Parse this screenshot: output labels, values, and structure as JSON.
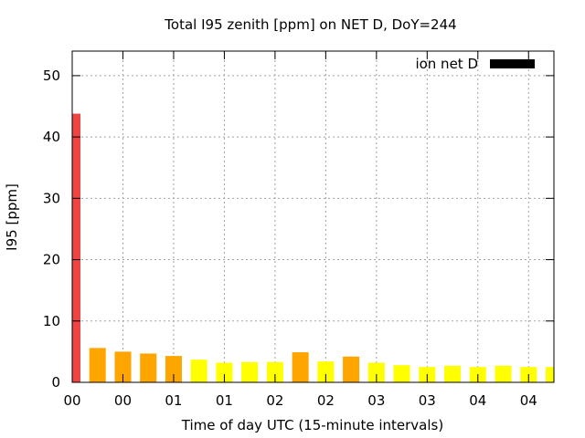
{
  "chart_data": {
    "type": "bar",
    "title": "Total I95 zenith [ppm] on NET D, DoY=244",
    "xlabel": "Time of day UTC (15-minute intervals)",
    "ylabel": "I95 [ppm]",
    "ylim": [
      0,
      54
    ],
    "yticks": [
      0,
      10,
      20,
      30,
      40,
      50
    ],
    "xlim": [
      0,
      19
    ],
    "xticks": [
      {
        "x": 0,
        "label": "00"
      },
      {
        "x": 2,
        "label": "00"
      },
      {
        "x": 4,
        "label": "01"
      },
      {
        "x": 6,
        "label": "01"
      },
      {
        "x": 8,
        "label": "02"
      },
      {
        "x": 10,
        "label": "02"
      },
      {
        "x": 12,
        "label": "03"
      },
      {
        "x": 14,
        "label": "03"
      },
      {
        "x": 16,
        "label": "04"
      },
      {
        "x": 18,
        "label": "04"
      }
    ],
    "grid": true,
    "legend": {
      "position": "top-right",
      "entries": [
        {
          "label": "ion net D",
          "color": "#000000"
        }
      ]
    },
    "bar_width": 0.65,
    "series": [
      {
        "x": [
          0,
          1,
          2,
          3,
          4,
          5,
          6,
          7,
          8,
          9,
          10,
          11,
          12,
          13,
          14,
          15,
          16,
          17,
          18,
          19
        ],
        "values": [
          43.8,
          5.6,
          5.0,
          4.7,
          4.3,
          3.7,
          3.2,
          3.3,
          3.3,
          4.9,
          3.4,
          4.2,
          3.2,
          2.8,
          2.5,
          2.7,
          2.5,
          2.7,
          2.5,
          2.5
        ],
        "colors": [
          "#ee4444",
          "#ffa500",
          "#ffa500",
          "#ffa500",
          "#ffa500",
          "#ffff00",
          "#ffff00",
          "#ffff00",
          "#ffff00",
          "#ffa500",
          "#ffff00",
          "#ffa500",
          "#ffff00",
          "#ffff00",
          "#ffff00",
          "#ffff00",
          "#ffff00",
          "#ffff00",
          "#ffff00",
          "#ffff00"
        ]
      }
    ]
  }
}
